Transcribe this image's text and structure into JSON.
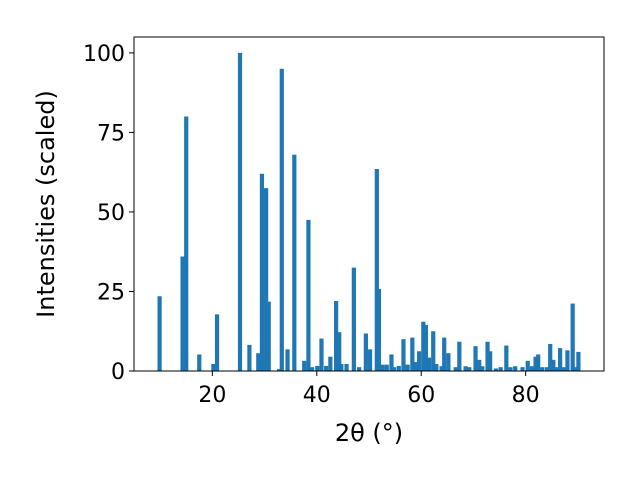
{
  "chart_data": {
    "type": "bar",
    "xlabel": "2θ (°)",
    "ylabel": "Intensities (scaled)",
    "xlim": [
      5,
      95
    ],
    "ylim": [
      0,
      105
    ],
    "xticks": [
      20,
      40,
      60,
      80
    ],
    "yticks": [
      0,
      25,
      50,
      75,
      100
    ],
    "bar_color": "#1f77b4",
    "grid": false,
    "x": [
      9.9,
      14.3,
      15.0,
      17.5,
      20.2,
      20.9,
      25.3,
      27.1,
      28.8,
      29.5,
      30.3,
      30.8,
      32.8,
      33.3,
      34.4,
      35.7,
      37.6,
      38.4,
      39.1,
      40.1,
      40.9,
      41.8,
      42.6,
      43.7,
      44.3,
      44.7,
      45.7,
      47.1,
      48.1,
      49.4,
      50.2,
      51.5,
      51.9,
      52.6,
      53.4,
      54.3,
      54.8,
      55.7,
      56.6,
      57.4,
      58.3,
      58.9,
      59.6,
      60.4,
      60.9,
      61.5,
      62.3,
      62.9,
      63.9,
      64.4,
      65.2,
      66.6,
      67.3,
      68.5,
      69.2,
      70.4,
      71.1,
      71.7,
      72.7,
      73.2,
      74.3,
      75.2,
      76.3,
      77.1,
      78.0,
      79.4,
      80.4,
      81.2,
      81.9,
      82.4,
      83.2,
      84.1,
      84.7,
      85.3,
      85.9,
      86.6,
      87.3,
      88.0,
      89.0,
      89.6,
      90.1
    ],
    "values": [
      23.5,
      36.0,
      80.0,
      5.2,
      2.2,
      17.8,
      100.0,
      8.2,
      5.6,
      62.0,
      57.5,
      21.8,
      0.6,
      95.0,
      6.8,
      68.0,
      3.2,
      47.5,
      1.2,
      1.6,
      10.2,
      1.6,
      4.5,
      22.0,
      12.2,
      2.2,
      2.2,
      32.5,
      1.2,
      11.8,
      6.8,
      63.5,
      25.8,
      2.0,
      2.0,
      5.2,
      1.2,
      1.6,
      10.0,
      2.0,
      10.5,
      2.8,
      6.2,
      15.5,
      14.5,
      4.2,
      12.5,
      2.2,
      1.5,
      10.5,
      5.6,
      1.2,
      9.2,
      1.5,
      1.2,
      7.8,
      3.5,
      1.5,
      9.2,
      6.2,
      0.8,
      1.2,
      8.0,
      1.2,
      1.5,
      1.2,
      3.2,
      1.5,
      4.5,
      5.2,
      1.2,
      1.2,
      8.5,
      3.5,
      1.2,
      7.2,
      1.2,
      6.5,
      21.2,
      1.2,
      6.0
    ]
  }
}
